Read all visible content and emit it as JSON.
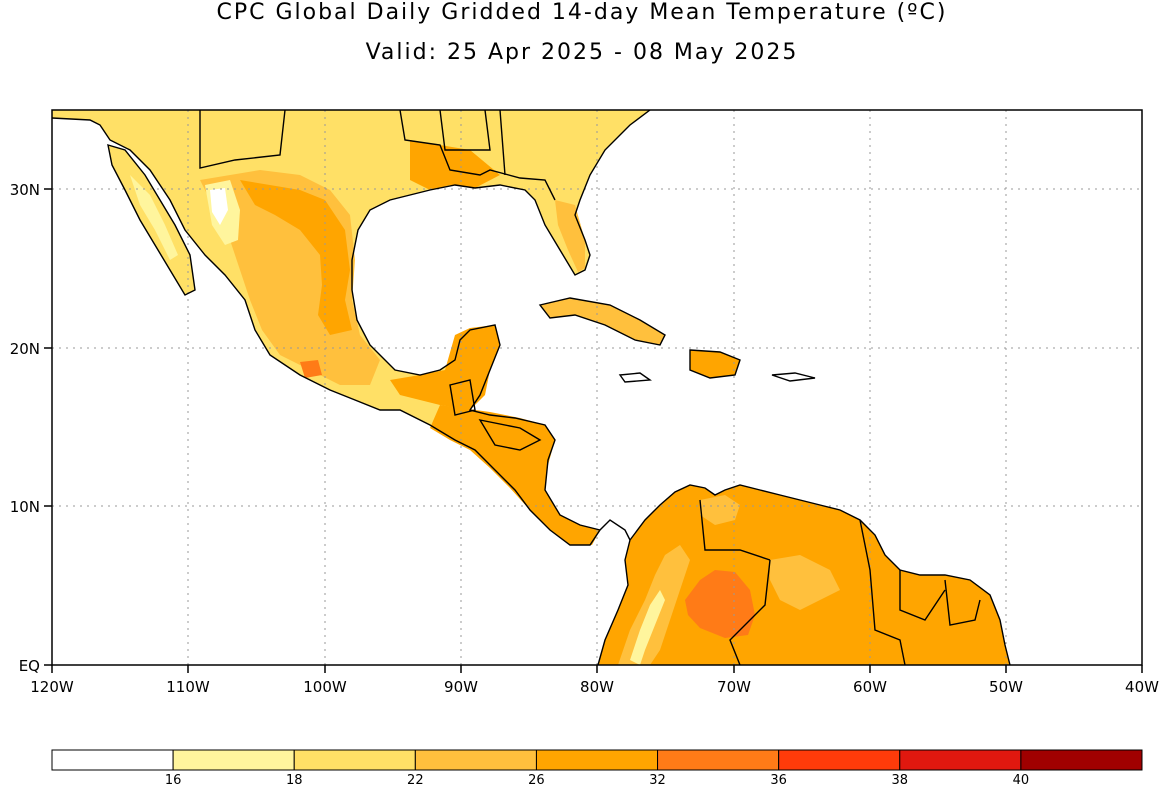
{
  "title_line1": "CPC Global Daily Gridded 14-day Mean Temperature (ºC)",
  "title_line2": "Valid: 25 Apr 2025 - 08 May 2025",
  "lon_ticks": [
    "120W",
    "110W",
    "100W",
    "90W",
    "80W",
    "70W",
    "60W",
    "50W",
    "40W"
  ],
  "lat_ticks": [
    "EQ",
    "10N",
    "20N",
    "30N"
  ],
  "colorbar": {
    "labels": [
      "16",
      "18",
      "22",
      "26",
      "32",
      "36",
      "38",
      "40"
    ],
    "colors": [
      "#ffffff",
      "#fff59d",
      "#ffe066",
      "#ffc03d",
      "#ffa500",
      "#ff7b17",
      "#ff3b0a",
      "#e0180f",
      "#a00000"
    ]
  },
  "map_colors": {
    "warm_26_32": "#ffa500",
    "warm_22_26": "#ffc03d",
    "mild_18_22": "#ffe066",
    "cool_16_18": "#fff59d",
    "hot_32_36": "#ff7b17",
    "ocean": "#ffffff"
  }
}
